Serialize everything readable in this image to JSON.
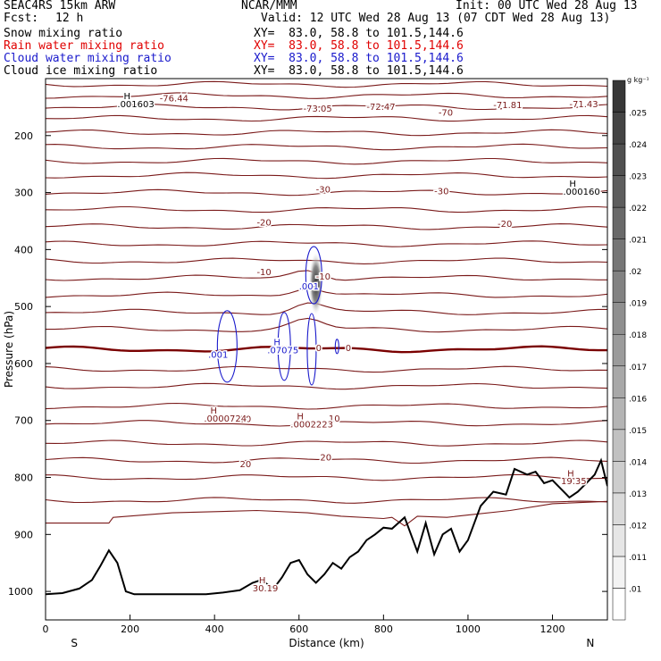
{
  "header": {
    "model": "SEAC4RS 15km ARW",
    "org": "NCAR/MMM",
    "init": "Init: 00 UTC Wed 28 Aug 13",
    "fcst_label": "Fcst:",
    "fcst_value": "12 h",
    "valid": "Valid: 12 UTC Wed 28 Aug 13 (07 CDT Wed 28 Aug 13)",
    "fields": [
      {
        "name": "Snow mixing ratio",
        "xy": "XY=  83.0, 58.8 to 101.5,144.6",
        "color": "#000000"
      },
      {
        "name": "Rain water mixing ratio",
        "xy": "XY=  83.0, 58.8 to 101.5,144.6",
        "color": "#e00000"
      },
      {
        "name": "Cloud water mixing ratio",
        "xy": "XY=  83.0, 58.8 to 101.5,144.6",
        "color": "#1a1acc"
      },
      {
        "name": "Cloud ice mixing ratio",
        "xy": "XY=  83.0, 58.8 to 101.5,144.6",
        "color": "#000000"
      }
    ]
  },
  "chart_data": {
    "type": "cross-section contour",
    "xlabel": "Distance (km)",
    "ylabel": "Pressure (hPa)",
    "xlim": [
      0,
      1330
    ],
    "ylim": [
      1050,
      100
    ],
    "x_ticks": [
      0,
      200,
      400,
      600,
      800,
      1000,
      1200
    ],
    "y_ticks": [
      200,
      300,
      400,
      500,
      600,
      700,
      800,
      900,
      1000
    ],
    "x_end_labels": {
      "left": "S",
      "right": "N"
    },
    "colorbar": {
      "unit": "g kg⁻¹",
      "levels": [
        ".01",
        ".011",
        ".012",
        ".013",
        ".014",
        ".015",
        ".016",
        ".017",
        ".018",
        ".019",
        ".02",
        ".021",
        ".022",
        ".023",
        ".024",
        ".025"
      ]
    },
    "isotherm_labels": [
      "-76.44",
      "-73.05",
      "-72.47",
      "-70",
      "-71.81",
      "-71.43",
      "-30",
      "-30",
      "-20",
      "-20",
      "-10",
      "-10",
      "0",
      "0",
      "10",
      "10",
      "20",
      "20"
    ],
    "extrema_labels": [
      {
        "mark": "H",
        "value": ".001603"
      },
      {
        "mark": "H",
        "value": ".000160"
      },
      {
        "mark": "H",
        "value": ".0000724"
      },
      {
        "mark": "H",
        "value": ".0002223"
      },
      {
        "mark": "H",
        "value": "19.35"
      },
      {
        "mark": "H",
        "value": "30.19"
      },
      {
        "mark": "H",
        "value": ".07075"
      }
    ],
    "cloud_labels": [
      ".001",
      ".001"
    ],
    "terrain_profile": {
      "x_km": [
        0,
        40,
        80,
        110,
        130,
        150,
        170,
        190,
        210,
        300,
        380,
        420,
        460,
        490,
        510,
        540,
        560,
        580,
        600,
        620,
        640,
        660,
        680,
        700,
        720,
        740,
        760,
        780,
        800,
        820,
        850,
        880,
        900,
        920,
        940,
        960,
        980,
        1000,
        1030,
        1060,
        1090,
        1110,
        1140,
        1160,
        1180,
        1200,
        1220,
        1240,
        1260,
        1280,
        1300,
        1315,
        1330
      ],
      "pressure_hpa": [
        1005,
        1003,
        995,
        980,
        955,
        928,
        950,
        1000,
        1005,
        1005,
        1005,
        1002,
        998,
        985,
        980,
        995,
        975,
        950,
        945,
        970,
        985,
        970,
        950,
        960,
        940,
        930,
        910,
        900,
        888,
        890,
        870,
        930,
        880,
        935,
        900,
        890,
        930,
        910,
        850,
        825,
        830,
        785,
        795,
        790,
        810,
        805,
        820,
        835,
        825,
        810,
        795,
        770,
        815
      ]
    }
  }
}
